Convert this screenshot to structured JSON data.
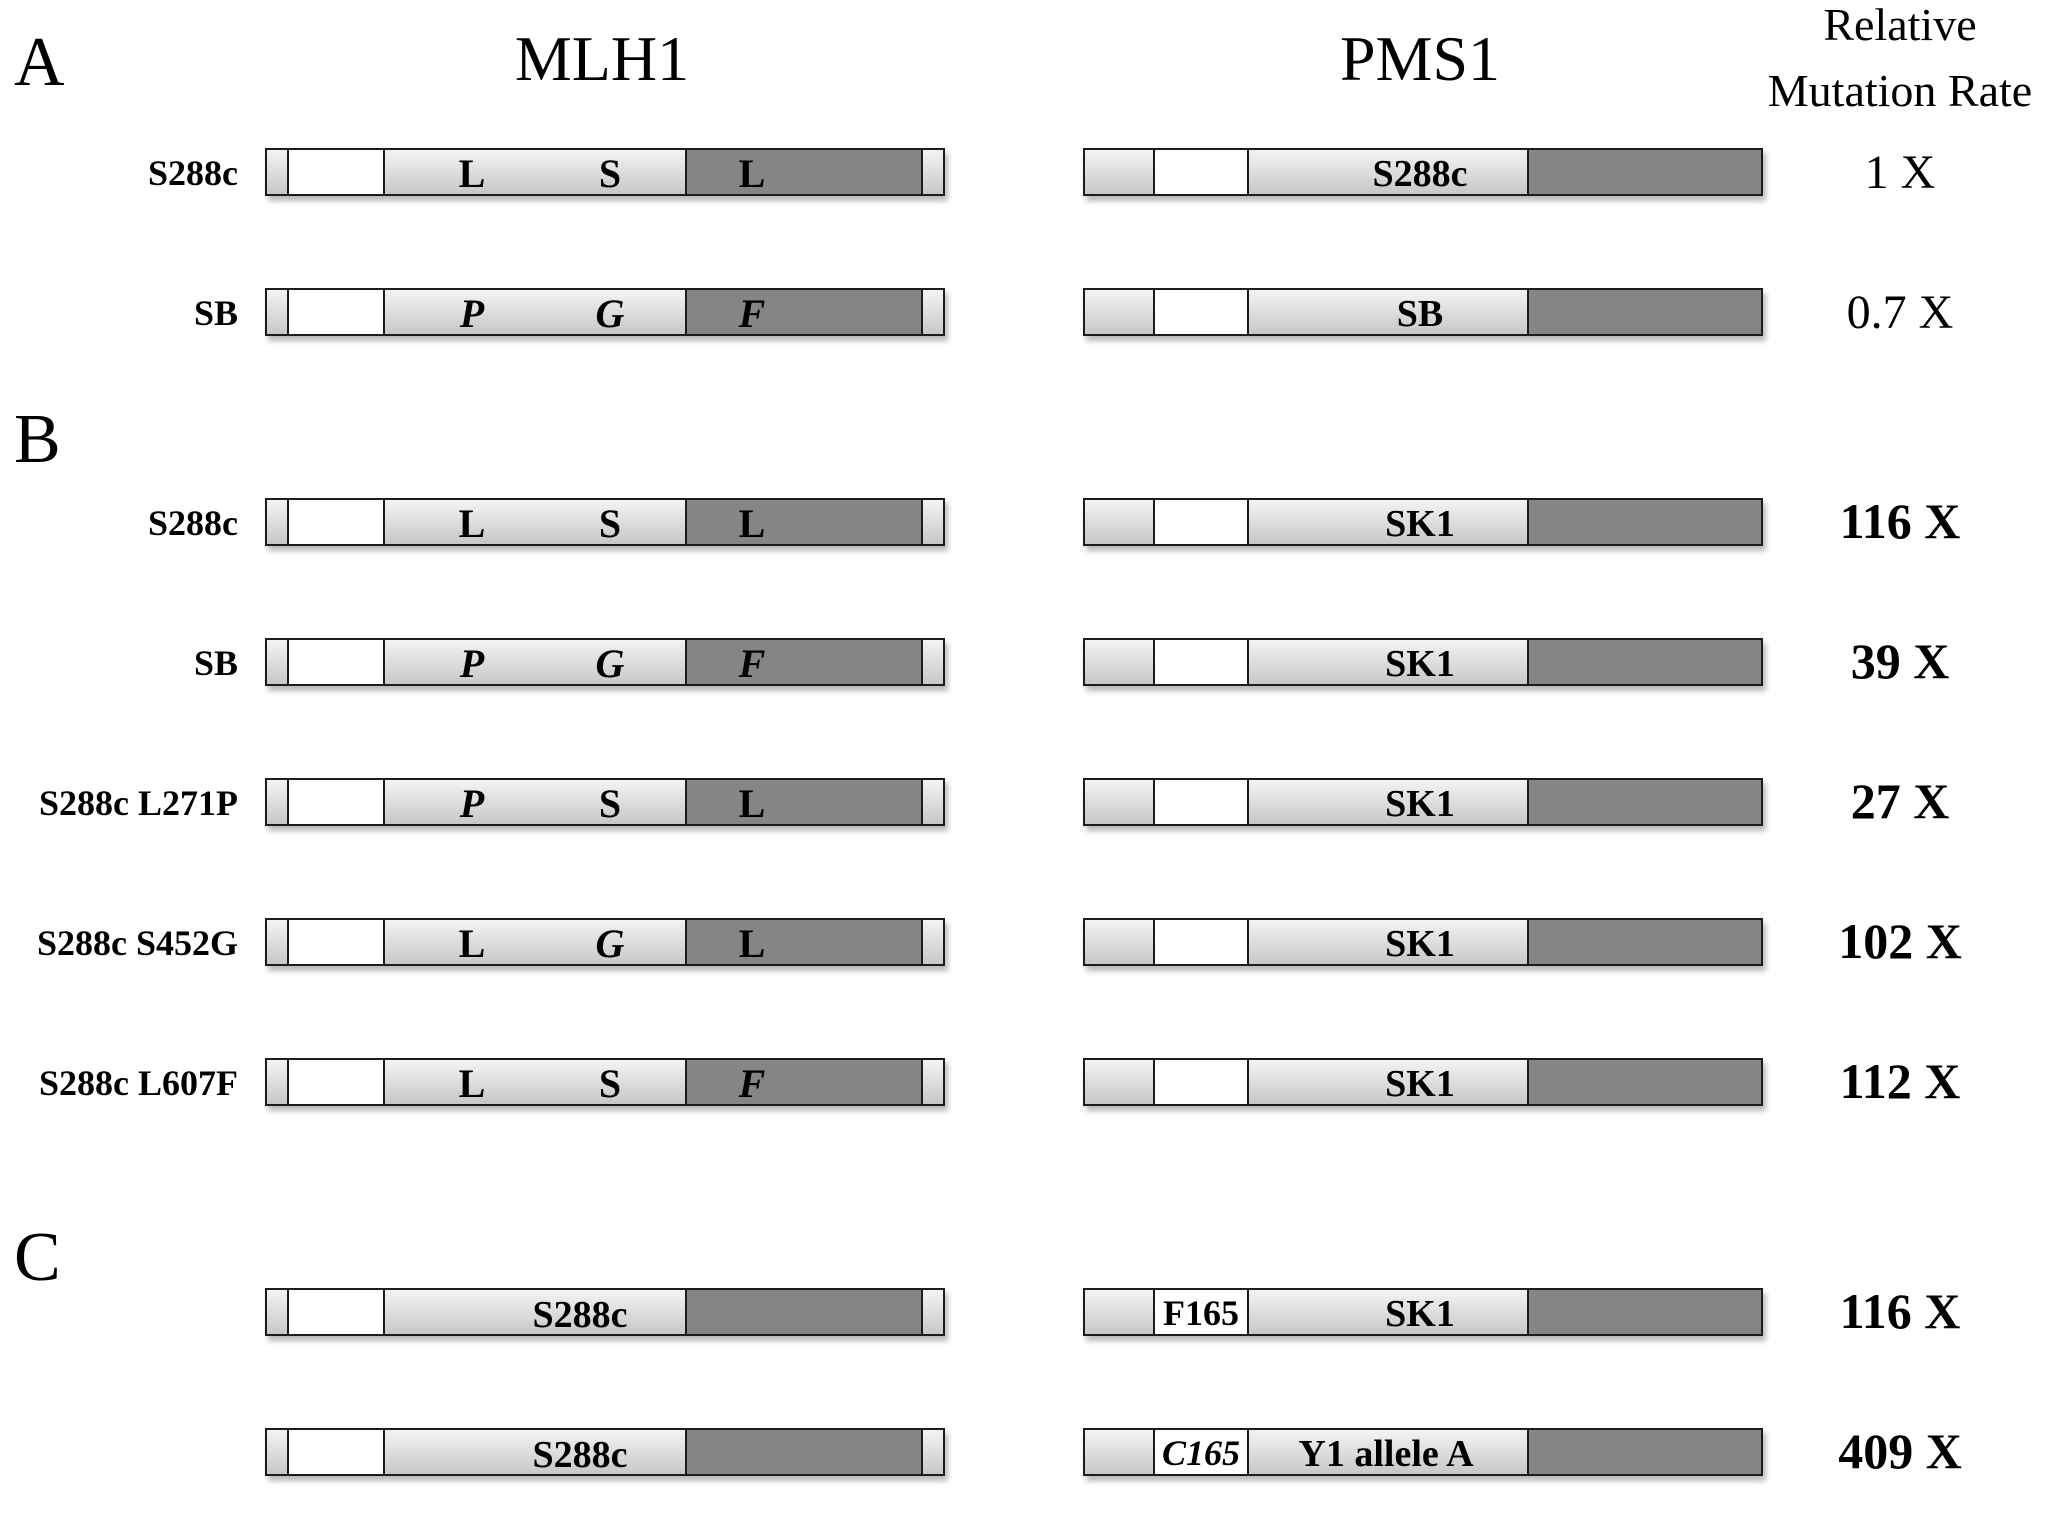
{
  "headers": {
    "mlh1": "MLH1",
    "pms1": "PMS1",
    "rate_line1": "Relative",
    "rate_line2": "Mutation Rate"
  },
  "panels": [
    {
      "letter": "A"
    },
    {
      "letter": "B"
    },
    {
      "letter": "C"
    }
  ],
  "rows": [
    {
      "panel": "A",
      "strain": "S288c",
      "mlh1": {
        "type": "residues",
        "residues": [
          {
            "text": "L",
            "italic": false
          },
          {
            "text": "S",
            "italic": false
          },
          {
            "text": "L",
            "italic": false
          }
        ]
      },
      "pms1": {
        "white_label": "",
        "white_italic": false,
        "main_label": "S288c"
      },
      "rate": "1 X",
      "rate_bold": false
    },
    {
      "panel": "A",
      "strain": "SB",
      "mlh1": {
        "type": "residues",
        "residues": [
          {
            "text": "P",
            "italic": true
          },
          {
            "text": "G",
            "italic": true
          },
          {
            "text": "F",
            "italic": true
          }
        ]
      },
      "pms1": {
        "white_label": "",
        "white_italic": false,
        "main_label": "SB"
      },
      "rate": "0.7 X",
      "rate_bold": false
    },
    {
      "panel": "B",
      "strain": "S288c",
      "mlh1": {
        "type": "residues",
        "residues": [
          {
            "text": "L",
            "italic": false
          },
          {
            "text": "S",
            "italic": false
          },
          {
            "text": "L",
            "italic": false
          }
        ]
      },
      "pms1": {
        "white_label": "",
        "white_italic": false,
        "main_label": "SK1"
      },
      "rate": "116 X",
      "rate_bold": true
    },
    {
      "panel": "B",
      "strain": "SB",
      "mlh1": {
        "type": "residues",
        "residues": [
          {
            "text": "P",
            "italic": true
          },
          {
            "text": "G",
            "italic": true
          },
          {
            "text": "F",
            "italic": true
          }
        ]
      },
      "pms1": {
        "white_label": "",
        "white_italic": false,
        "main_label": "SK1"
      },
      "rate": "39 X",
      "rate_bold": true
    },
    {
      "panel": "B",
      "strain": "S288c L271P",
      "mlh1": {
        "type": "residues",
        "residues": [
          {
            "text": "P",
            "italic": true
          },
          {
            "text": "S",
            "italic": false
          },
          {
            "text": "L",
            "italic": false
          }
        ]
      },
      "pms1": {
        "white_label": "",
        "white_italic": false,
        "main_label": "SK1"
      },
      "rate": "27 X",
      "rate_bold": true
    },
    {
      "panel": "B",
      "strain": "S288c S452G",
      "mlh1": {
        "type": "residues",
        "residues": [
          {
            "text": "L",
            "italic": false
          },
          {
            "text": "G",
            "italic": true
          },
          {
            "text": "L",
            "italic": false
          }
        ]
      },
      "pms1": {
        "white_label": "",
        "white_italic": false,
        "main_label": "SK1"
      },
      "rate": "102 X",
      "rate_bold": true
    },
    {
      "panel": "B",
      "strain": "S288c L607F",
      "mlh1": {
        "type": "residues",
        "residues": [
          {
            "text": "L",
            "italic": false
          },
          {
            "text": "S",
            "italic": false
          },
          {
            "text": "F",
            "italic": true
          }
        ]
      },
      "pms1": {
        "white_label": "",
        "white_italic": false,
        "main_label": "SK1"
      },
      "rate": "112 X",
      "rate_bold": true
    },
    {
      "panel": "C",
      "strain": "",
      "mlh1": {
        "type": "strain",
        "label": "S288c"
      },
      "pms1": {
        "white_label": "F165",
        "white_italic": false,
        "main_label": "SK1"
      },
      "rate": "116 X",
      "rate_bold": true
    },
    {
      "panel": "C",
      "strain": "",
      "mlh1": {
        "type": "strain",
        "label": "S288c"
      },
      "pms1": {
        "white_label": "C165",
        "white_italic": true,
        "main_label": "Y1 allele A"
      },
      "rate": "409 X",
      "rate_bold": true
    }
  ],
  "colors": {
    "light_segment_top": "#f4f4f4",
    "light_segment_bottom": "#c6c6c6",
    "dark_segment": "#858585",
    "white_segment": "#ffffff",
    "outline": "#1a1a1a",
    "shadow": "#bdbdbd"
  }
}
